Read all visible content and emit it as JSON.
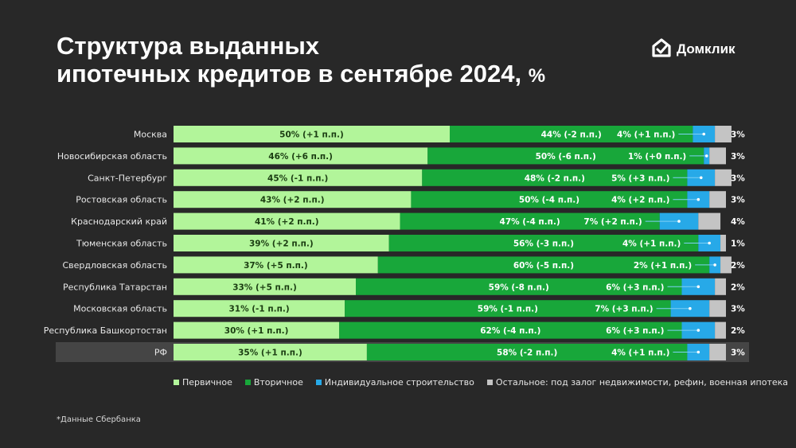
{
  "header": {
    "title_line1": "Структура выданных",
    "title_line2": "ипотечных кредитов в сентябре 2024,",
    "title_unit": "%"
  },
  "brand": {
    "name": "Домклик",
    "logo_icon": "house-check-icon"
  },
  "legend": [
    {
      "label": "Первичное",
      "color": "#b2f59a"
    },
    {
      "label": "Вторичное",
      "color": "#18a73a"
    },
    {
      "label": "Индивидуальное строительство",
      "color": "#27a9e8"
    },
    {
      "label": "Остальное: под залог недвижимости, рефин, военная ипотека",
      "color": "#c4c4c4"
    }
  ],
  "footnote": "*Данные Сбербанка",
  "chart_data": {
    "type": "bar",
    "stacked": true,
    "orientation": "horizontal",
    "categories": [
      "Москва",
      "Новосибирская область",
      "Санкт-Петербург",
      "Ростовская область",
      "Краснодарский край",
      "Тюменская область",
      "Свердловская область",
      "Республика Татарстан",
      "Московская область",
      "Республика Башкортостан",
      "РФ"
    ],
    "highlight_category": "РФ",
    "series": [
      {
        "name": "Первичное",
        "color": "#b2f59a",
        "values": [
          50,
          46,
          45,
          43,
          41,
          39,
          37,
          33,
          31,
          30,
          35
        ],
        "labels": [
          "50% (+1 п.п.)",
          "46% (+6 п.п.)",
          "45% (-1 п.п.)",
          "43% (+2 п.п.)",
          "41% (+2 п.п.)",
          "39% (+2 п.п.)",
          "37% (+5 п.п.)",
          "33% (+5 п.п.)",
          "31% (-1 п.п.)",
          "30% (+1 п.п.)",
          "35% (+1 п.п.)"
        ]
      },
      {
        "name": "Вторичное",
        "color": "#18a73a",
        "values": [
          44,
          50,
          48,
          50,
          47,
          56,
          60,
          59,
          59,
          62,
          58
        ],
        "labels": [
          "44% (-2 п.п.)",
          "50% (-6 п.п.)",
          "48% (-2 п.п.)",
          "50% (-4 п.п.)",
          "47% (-4 п.п.)",
          "56% (-3 п.п.)",
          "60% (-5 п.п.)",
          "59% (-8 п.п.)",
          "59% (-1 п.п.)",
          "62% (-4 п.п.)",
          "58% (-2 п.п.)"
        ]
      },
      {
        "name": "Индивидуальное строительство",
        "color": "#27a9e8",
        "values": [
          4,
          1,
          5,
          4,
          7,
          4,
          2,
          6,
          7,
          6,
          4
        ],
        "labels": [
          "4% (+1 п.п.)",
          "1% (+0 п.п.)",
          "5% (+3 п.п.)",
          "4% (+2 п.п.)",
          "7% (+2 п.п.)",
          "4% (+1 п.п.)",
          "2% (+1 п.п.)",
          "6% (+3 п.п.)",
          "7% (+3 п.п.)",
          "6% (+3 п.п.)",
          "4% (+1 п.п.)"
        ]
      },
      {
        "name": "Остальное: под залог недвижимости, рефин, военная ипотека",
        "color": "#c4c4c4",
        "values": [
          3,
          3,
          3,
          3,
          4,
          1,
          2,
          2,
          3,
          2,
          3
        ],
        "labels": [
          "3%",
          "3%",
          "3%",
          "3%",
          "4%",
          "1%",
          "2%",
          "2%",
          "3%",
          "2%",
          "3%"
        ]
      }
    ],
    "xlim": [
      0,
      100
    ],
    "grid": false,
    "legend_position": "bottom"
  }
}
